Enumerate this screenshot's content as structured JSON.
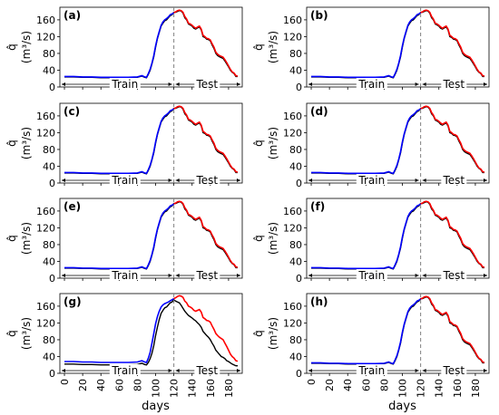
{
  "chart_data": {
    "type": "line",
    "shared": {
      "xlabel": "days",
      "ylabel_symbol": "q̂",
      "ylabel_unit": "(m³/s)",
      "xlim": [
        -5,
        195
      ],
      "ylim": [
        0,
        190
      ],
      "xticks": [
        "0",
        "20",
        "40",
        "60",
        "80",
        "100",
        "120",
        "140",
        "160",
        "180"
      ],
      "yticks": [
        "0",
        "40",
        "80",
        "120",
        "160"
      ],
      "split_day": 120,
      "train_label": "Train",
      "test_label": "Test",
      "colors": {
        "observed": "#000000",
        "train_pred": "#0000ff",
        "test_pred": "#ff0000",
        "split_line": "#808080"
      },
      "observed": {
        "x": [
          0,
          10,
          20,
          30,
          40,
          50,
          60,
          70,
          80,
          85,
          88,
          90,
          92,
          94,
          96,
          98,
          100,
          102,
          104,
          106,
          108,
          110,
          112,
          114,
          116,
          118,
          120,
          122,
          124,
          126,
          128,
          130,
          132,
          134,
          136,
          138,
          140,
          142,
          144,
          146,
          148,
          150,
          152,
          154,
          156,
          158,
          160,
          162,
          164,
          166,
          168,
          170,
          172,
          174,
          176,
          178,
          180,
          182,
          184,
          186,
          188,
          190
        ],
        "y": [
          24,
          24,
          23,
          23,
          22,
          22,
          22,
          22,
          23,
          26,
          23,
          22,
          30,
          40,
          55,
          72,
          95,
          115,
          130,
          145,
          152,
          158,
          160,
          165,
          170,
          172,
          178,
          178,
          180,
          182,
          181,
          176,
          165,
          160,
          150,
          148,
          145,
          140,
          138,
          141,
          143,
          136,
          120,
          118,
          114,
          113,
          110,
          100,
          92,
          80,
          75,
          72,
          70,
          68,
          62,
          55,
          48,
          40,
          35,
          32,
          25,
          25
        ]
      },
      "prediction_base": {
        "x": [
          0,
          10,
          20,
          30,
          40,
          50,
          60,
          70,
          80,
          85,
          88,
          90,
          92,
          94,
          96,
          98,
          100,
          102,
          104,
          106,
          108,
          110,
          112,
          114,
          116,
          118,
          120,
          122,
          124,
          126,
          128,
          130,
          132,
          134,
          136,
          138,
          140,
          142,
          144,
          146,
          148,
          150,
          152,
          154,
          156,
          158,
          160,
          162,
          164,
          166,
          168,
          170,
          172,
          174,
          176,
          178,
          180,
          182,
          184,
          186,
          188,
          190
        ],
        "y": [
          25,
          25,
          24,
          24,
          23,
          23,
          23,
          23,
          24,
          27,
          24,
          23,
          32,
          42,
          57,
          75,
          98,
          117,
          132,
          147,
          155,
          160,
          163,
          167,
          172,
          174,
          177,
          179,
          182,
          183,
          182,
          178,
          168,
          162,
          152,
          150,
          147,
          143,
          140,
          143,
          145,
          138,
          123,
          120,
          116,
          115,
          112,
          103,
          95,
          83,
          78,
          75,
          73,
          71,
          65,
          58,
          50,
          42,
          36,
          33,
          27,
          26
        ]
      },
      "prediction_g": {
        "x": [
          0,
          10,
          20,
          30,
          40,
          50,
          60,
          70,
          80,
          85,
          88,
          90,
          92,
          94,
          96,
          98,
          100,
          102,
          104,
          106,
          108,
          110,
          112,
          114,
          116,
          118,
          120,
          122,
          124,
          126,
          128,
          130,
          132,
          134,
          136,
          138,
          140,
          142,
          144,
          146,
          148,
          150,
          152,
          154,
          156,
          158,
          160,
          162,
          164,
          166,
          168,
          170,
          172,
          174,
          176,
          178,
          180,
          182,
          184,
          186,
          188,
          190
        ],
        "y": [
          28,
          28,
          27,
          27,
          26,
          26,
          26,
          26,
          27,
          30,
          27,
          26,
          36,
          50,
          72,
          95,
          118,
          135,
          148,
          158,
          163,
          166,
          168,
          170,
          173,
          175,
          178,
          180,
          183,
          185,
          184,
          181,
          172,
          168,
          160,
          158,
          155,
          150,
          148,
          150,
          152,
          146,
          133,
          130,
          126,
          125,
          122,
          113,
          105,
          95,
          90,
          86,
          83,
          80,
          72,
          64,
          55,
          46,
          40,
          36,
          30,
          29
        ]
      },
      "observed_g": {
        "x": [
          0,
          10,
          20,
          30,
          40,
          50,
          60,
          70,
          80,
          85,
          88,
          90,
          92,
          94,
          96,
          98,
          100,
          102,
          104,
          106,
          108,
          110,
          112,
          114,
          116,
          118,
          120,
          122,
          124,
          126,
          128,
          130,
          132,
          134,
          136,
          138,
          140,
          142,
          144,
          146,
          148,
          150,
          152,
          154,
          156,
          158,
          160,
          162,
          164,
          166,
          168,
          170,
          172,
          174,
          176,
          178,
          180,
          182,
          184,
          186,
          188,
          190
        ],
        "y": [
          22,
          22,
          21,
          21,
          20,
          20,
          20,
          20,
          21,
          24,
          21,
          20,
          26,
          35,
          48,
          66,
          90,
          110,
          128,
          143,
          150,
          156,
          158,
          163,
          168,
          170,
          175,
          172,
          170,
          168,
          162,
          155,
          148,
          143,
          138,
          135,
          132,
          128,
          125,
          120,
          116,
          110,
          100,
          95,
          90,
          86,
          80,
          72,
          65,
          55,
          50,
          45,
          40,
          38,
          35,
          30,
          28,
          25,
          22,
          20,
          18,
          18
        ]
      }
    },
    "panels": [
      {
        "label": "(a)"
      },
      {
        "label": "(b)"
      },
      {
        "label": "(c)"
      },
      {
        "label": "(d)"
      },
      {
        "label": "(e)"
      },
      {
        "label": "(f)"
      },
      {
        "label": "(g)"
      },
      {
        "label": "(h)"
      }
    ]
  }
}
